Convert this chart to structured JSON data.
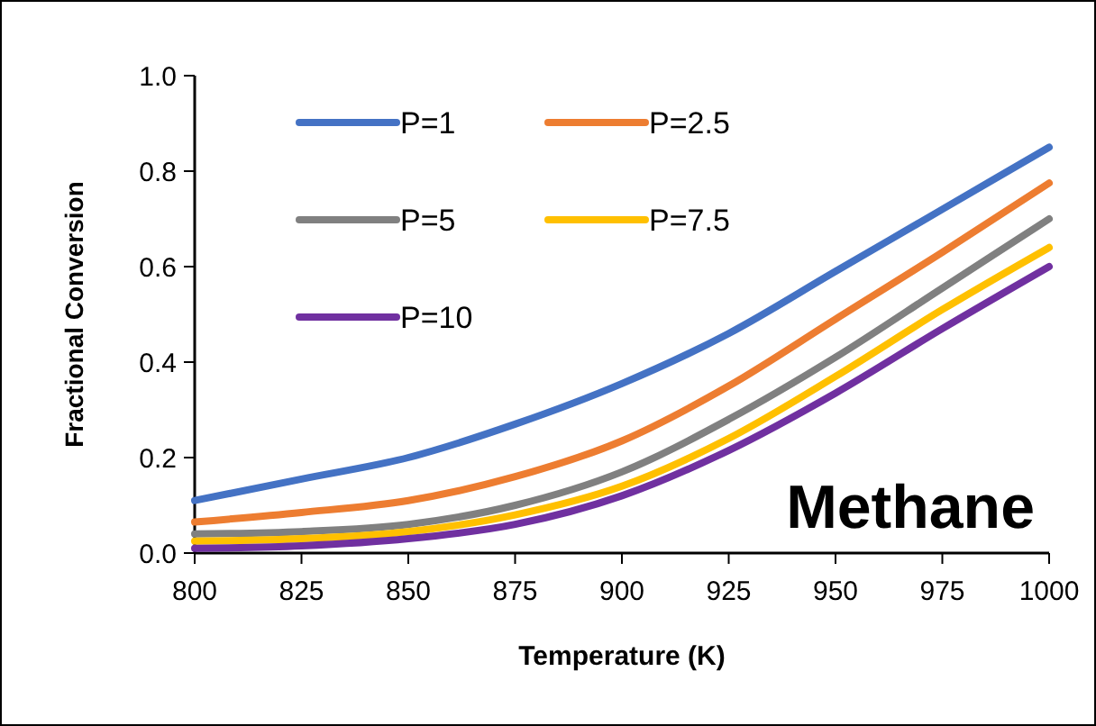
{
  "chart_data": {
    "type": "line",
    "xlabel": "Temperature (K)",
    "ylabel": "Fractional Conversion",
    "x": [
      800,
      825,
      850,
      875,
      900,
      925,
      950,
      975,
      1000
    ],
    "xlim": [
      800,
      1000
    ],
    "xticks": [
      800,
      825,
      850,
      875,
      900,
      925,
      950,
      975,
      1000
    ],
    "ylim": [
      0,
      1
    ],
    "yticks": [
      {
        "value": 0,
        "label": "0.0"
      },
      0.2,
      0.4,
      0.6,
      0.8,
      {
        "value": 1,
        "label": "1.0"
      }
    ],
    "grid": false,
    "legend": "top left",
    "marker": "none",
    "line_style": "solid",
    "annotations": [
      "Methane"
    ],
    "series": [
      {
        "name": "P=1",
        "color": "#4472c4",
        "values": [
          0.11,
          0.155,
          0.2,
          0.27,
          0.355,
          0.46,
          0.59,
          0.72,
          0.85
        ]
      },
      {
        "name": "P=2.5",
        "color": "#ed7d31",
        "values": [
          0.065,
          0.085,
          0.11,
          0.16,
          0.235,
          0.35,
          0.49,
          0.63,
          0.775
        ]
      },
      {
        "name": "P=5",
        "color": "#808080",
        "values": [
          0.04,
          0.045,
          0.06,
          0.1,
          0.17,
          0.28,
          0.41,
          0.555,
          0.7
        ]
      },
      {
        "name": "P=7.5",
        "color": "#ffc000",
        "values": [
          0.025,
          0.03,
          0.045,
          0.08,
          0.14,
          0.24,
          0.37,
          0.51,
          0.64
        ]
      },
      {
        "name": "P=10",
        "color": "#7030a0",
        "values": [
          0.01,
          0.015,
          0.03,
          0.06,
          0.12,
          0.215,
          0.335,
          0.47,
          0.6
        ]
      }
    ]
  }
}
